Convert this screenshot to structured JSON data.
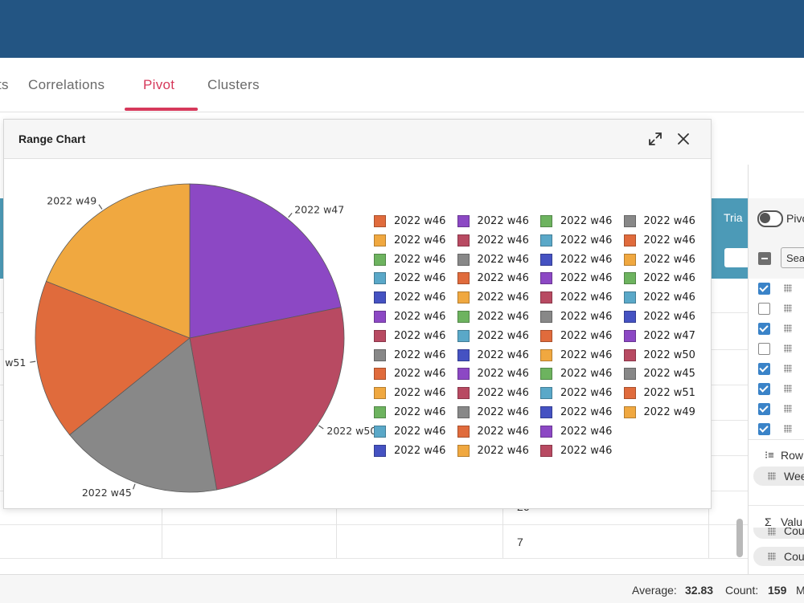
{
  "tabs": [
    {
      "label": "ts",
      "active": false
    },
    {
      "label": "Correlations",
      "active": false
    },
    {
      "label": "Pivot",
      "active": true
    },
    {
      "label": "Clusters",
      "active": false
    }
  ],
  "grid": {
    "header_label": "Tria",
    "visible_values": [
      "26",
      "7"
    ]
  },
  "side_panel": {
    "toggle_label": "Pivo",
    "search_placeholder": "Sea",
    "checkboxes": [
      true,
      false,
      true,
      false,
      true,
      true,
      true,
      true
    ],
    "rows_label": "Row",
    "rows_field": "Wee",
    "values_label": "Valu",
    "values_fields": [
      "Cou",
      "Cou"
    ]
  },
  "status": {
    "average_label": "Average:",
    "average_value": "32.83",
    "count_label": "Count:",
    "count_value": "159",
    "more_label": "M"
  },
  "dialog": {
    "title": "Range Chart",
    "expand_icon": "expand-icon",
    "close_icon": "close-icon"
  },
  "chart_data": {
    "type": "pie",
    "slices": [
      {
        "label": "2022 w47",
        "value": 21.8,
        "color": "#8c48c4",
        "shown_label": "2022 w47"
      },
      {
        "label": "2022 w50",
        "value": 25.4,
        "color": "#b84a62",
        "shown_label": "2022 w50"
      },
      {
        "label": "2022 w45",
        "value": 17.0,
        "color": "#888888",
        "shown_label": "2022 w45"
      },
      {
        "label": "2022 w51",
        "value": 16.8,
        "color": "#e06b3c",
        "shown_label": "w51"
      },
      {
        "label": "2022 w49",
        "value": 19.0,
        "color": "#f0a840",
        "shown_label": "2022 w49"
      }
    ],
    "legend": {
      "columns": [
        [
          {
            "label": "2022 w46",
            "color": "#e06b3c"
          },
          {
            "label": "2022 w46",
            "color": "#f0a840"
          },
          {
            "label": "2022 w46",
            "color": "#6db35f"
          },
          {
            "label": "2022 w46",
            "color": "#5aa8c8"
          },
          {
            "label": "2022 w46",
            "color": "#4552c2"
          },
          {
            "label": "2022 w46",
            "color": "#8c48c4"
          },
          {
            "label": "2022 w46",
            "color": "#b84a62"
          },
          {
            "label": "2022 w46",
            "color": "#888888"
          },
          {
            "label": "2022 w46",
            "color": "#e06b3c"
          },
          {
            "label": "2022 w46",
            "color": "#f0a840"
          },
          {
            "label": "2022 w46",
            "color": "#6db35f"
          },
          {
            "label": "2022 w46",
            "color": "#5aa8c8"
          },
          {
            "label": "2022 w46",
            "color": "#4552c2"
          }
        ],
        [
          {
            "label": "2022 w46",
            "color": "#8c48c4"
          },
          {
            "label": "2022 w46",
            "color": "#b84a62"
          },
          {
            "label": "2022 w46",
            "color": "#888888"
          },
          {
            "label": "2022 w46",
            "color": "#e06b3c"
          },
          {
            "label": "2022 w46",
            "color": "#f0a840"
          },
          {
            "label": "2022 w46",
            "color": "#6db35f"
          },
          {
            "label": "2022 w46",
            "color": "#5aa8c8"
          },
          {
            "label": "2022 w46",
            "color": "#4552c2"
          },
          {
            "label": "2022 w46",
            "color": "#8c48c4"
          },
          {
            "label": "2022 w46",
            "color": "#b84a62"
          },
          {
            "label": "2022 w46",
            "color": "#888888"
          },
          {
            "label": "2022 w46",
            "color": "#e06b3c"
          },
          {
            "label": "2022 w46",
            "color": "#f0a840"
          }
        ],
        [
          {
            "label": "2022 w46",
            "color": "#6db35f"
          },
          {
            "label": "2022 w46",
            "color": "#5aa8c8"
          },
          {
            "label": "2022 w46",
            "color": "#4552c2"
          },
          {
            "label": "2022 w46",
            "color": "#8c48c4"
          },
          {
            "label": "2022 w46",
            "color": "#b84a62"
          },
          {
            "label": "2022 w46",
            "color": "#888888"
          },
          {
            "label": "2022 w46",
            "color": "#e06b3c"
          },
          {
            "label": "2022 w46",
            "color": "#f0a840"
          },
          {
            "label": "2022 w46",
            "color": "#6db35f"
          },
          {
            "label": "2022 w46",
            "color": "#5aa8c8"
          },
          {
            "label": "2022 w46",
            "color": "#4552c2"
          },
          {
            "label": "2022 w46",
            "color": "#8c48c4"
          },
          {
            "label": "2022 w46",
            "color": "#b84a62"
          }
        ],
        [
          {
            "label": "2022 w46",
            "color": "#888888"
          },
          {
            "label": "2022 w46",
            "color": "#e06b3c"
          },
          {
            "label": "2022 w46",
            "color": "#f0a840"
          },
          {
            "label": "2022 w46",
            "color": "#6db35f"
          },
          {
            "label": "2022 w46",
            "color": "#5aa8c8"
          },
          {
            "label": "2022 w46",
            "color": "#4552c2"
          },
          {
            "label": "2022 w47",
            "color": "#8c48c4"
          },
          {
            "label": "2022 w50",
            "color": "#b84a62"
          },
          {
            "label": "2022 w45",
            "color": "#888888"
          },
          {
            "label": "2022 w51",
            "color": "#e06b3c"
          },
          {
            "label": "2022 w49",
            "color": "#f0a840"
          }
        ]
      ]
    }
  }
}
